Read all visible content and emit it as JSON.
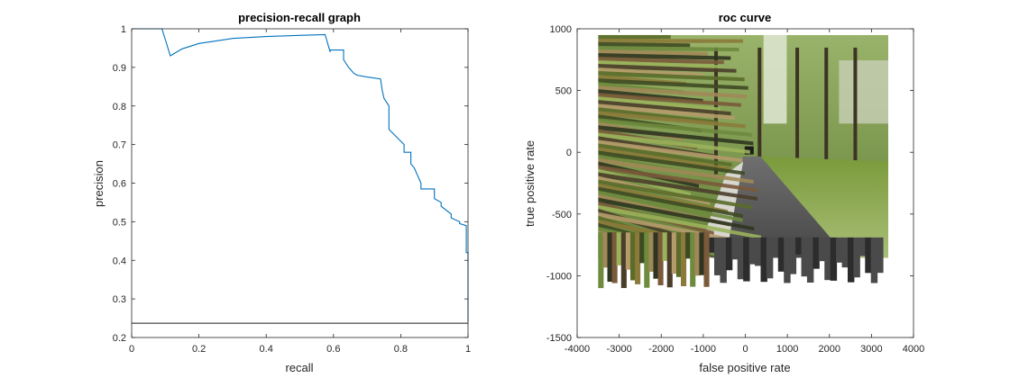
{
  "chart_data": [
    {
      "type": "line",
      "title": "precision-recall graph",
      "xlabel": "recall",
      "ylabel": "precision",
      "xlim": [
        0,
        1
      ],
      "ylim": [
        0.2,
        1
      ],
      "xticks": [
        "0",
        "0.2",
        "0.4",
        "0.6",
        "0.8",
        "1"
      ],
      "yticks": [
        "0.2",
        "0.3",
        "0.4",
        "0.5",
        "0.6",
        "0.7",
        "0.8",
        "0.9",
        "1"
      ],
      "grid": false,
      "series": [
        {
          "color": "#0072BD",
          "x": [
            0,
            0.09,
            0.115,
            0.15,
            0.2,
            0.3,
            0.4,
            0.5,
            0.575,
            0.59,
            0.59,
            0.63,
            0.63,
            0.645,
            0.65,
            0.66,
            0.67,
            0.7,
            0.74,
            0.745,
            0.75,
            0.765,
            0.765,
            0.77,
            0.81,
            0.81,
            0.83,
            0.83,
            0.84,
            0.86,
            0.86,
            0.9,
            0.9,
            0.92,
            0.92,
            0.95,
            0.95,
            0.975,
            0.975,
            0.995,
            0.995,
            1,
            1
          ],
          "y": [
            1,
            1,
            0.93,
            0.948,
            0.962,
            0.975,
            0.98,
            0.983,
            0.985,
            0.94,
            0.945,
            0.945,
            0.92,
            0.9,
            0.895,
            0.885,
            0.88,
            0.875,
            0.87,
            0.84,
            0.82,
            0.8,
            0.74,
            0.735,
            0.7,
            0.68,
            0.68,
            0.65,
            0.64,
            0.6,
            0.585,
            0.585,
            0.56,
            0.55,
            0.54,
            0.52,
            0.51,
            0.5,
            0.495,
            0.49,
            0.42,
            0.42,
            0.24
          ]
        },
        {
          "color": "#1a1a1a",
          "x": [
            0,
            1
          ],
          "y": [
            0.237,
            0.237
          ]
        }
      ]
    },
    {
      "type": "image",
      "title": "roc curve",
      "xlabel": "false positive rate",
      "ylabel": "true positive rate",
      "xlim": [
        -4000,
        4000
      ],
      "ylim": [
        -1500,
        1000
      ],
      "xticks": [
        "-4000",
        "-3000",
        "-2000",
        "-1000",
        "0",
        "1000",
        "2000",
        "3000",
        "4000"
      ],
      "yticks": [
        "-1500",
        "-1000",
        "-500",
        "0",
        "500",
        "1000"
      ],
      "grid": false,
      "image_extent": {
        "x": [
          -3500,
          3400
        ],
        "y": [
          -1100,
          950
        ]
      },
      "image_content": "warped street scene with trees"
    }
  ]
}
